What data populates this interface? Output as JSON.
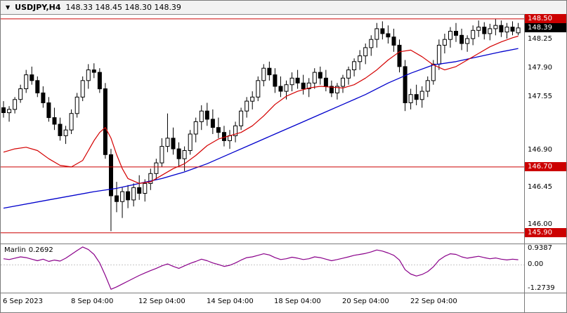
{
  "header": {
    "dropdown_icon": "▼",
    "symbol": "USDJPY,H4",
    "quote": "148.33 148.45 148.30 148.39"
  },
  "chart_data": {
    "type": "candlestick",
    "title": "USDJPY H4 chart with Marlin oscillator",
    "symbol": "USDJPY",
    "timeframe": "H4",
    "last_quote": {
      "open": "148.33",
      "high": "148.45",
      "low": "148.30",
      "close": "148.39"
    },
    "colors": {
      "hline": "#cc0000",
      "ma_fast": "#d40000",
      "ma_slow": "#0000cc",
      "indicator": "#8a008a",
      "current_bg": "#000000",
      "bull": "#ffffff",
      "bear": "#000000",
      "wick": "#000000",
      "zero_line": "#c8c8c8"
    },
    "price_axis": {
      "range": [
        145.77,
        148.55
      ],
      "ticks": [
        {
          "value": 148.25,
          "label": "148.25"
        },
        {
          "value": 147.9,
          "label": "147.90"
        },
        {
          "value": 147.55,
          "label": "147.55"
        },
        {
          "value": 146.9,
          "label": "146.90"
        },
        {
          "value": 146.45,
          "label": "146.45"
        },
        {
          "value": 146.0,
          "label": "146.00"
        }
      ]
    },
    "hlines": [
      {
        "price": 148.5,
        "label": "148.50"
      },
      {
        "price": 146.7,
        "label": "146.70"
      },
      {
        "price": 145.9,
        "label": "145.90"
      }
    ],
    "current_price": {
      "value": 148.39,
      "label": "148.39"
    },
    "candles": [
      [
        147.42,
        147.5,
        147.3,
        147.36
      ],
      [
        147.36,
        147.44,
        147.25,
        147.4
      ],
      [
        147.4,
        147.55,
        147.35,
        147.52
      ],
      [
        147.52,
        147.7,
        147.48,
        147.65
      ],
      [
        147.65,
        147.88,
        147.6,
        147.82
      ],
      [
        147.82,
        147.92,
        147.7,
        147.75
      ],
      [
        147.75,
        147.8,
        147.55,
        147.6
      ],
      [
        147.6,
        147.68,
        147.42,
        147.48
      ],
      [
        147.48,
        147.55,
        147.25,
        147.3
      ],
      [
        147.3,
        147.42,
        147.15,
        147.22
      ],
      [
        147.22,
        147.3,
        147.02,
        147.08
      ],
      [
        147.08,
        147.2,
        146.98,
        147.15
      ],
      [
        147.15,
        147.4,
        147.1,
        147.35
      ],
      [
        147.35,
        147.6,
        147.3,
        147.55
      ],
      [
        147.55,
        147.8,
        147.5,
        147.75
      ],
      [
        147.75,
        147.95,
        147.65,
        147.88
      ],
      [
        147.88,
        147.96,
        147.78,
        147.85
      ],
      [
        147.85,
        147.9,
        147.6,
        147.65
      ],
      [
        147.65,
        147.72,
        146.8,
        146.85
      ],
      [
        146.85,
        146.92,
        145.92,
        146.35
      ],
      [
        146.35,
        146.52,
        146.15,
        146.28
      ],
      [
        146.28,
        146.45,
        146.08,
        146.4
      ],
      [
        146.4,
        146.48,
        146.2,
        146.3
      ],
      [
        146.3,
        146.5,
        146.22,
        146.45
      ],
      [
        146.45,
        146.6,
        146.3,
        146.38
      ],
      [
        146.38,
        146.55,
        146.28,
        146.5
      ],
      [
        146.5,
        146.68,
        146.42,
        146.62
      ],
      [
        146.62,
        146.8,
        146.55,
        146.75
      ],
      [
        146.75,
        147.05,
        146.7,
        146.95
      ],
      [
        146.95,
        147.35,
        146.88,
        147.05
      ],
      [
        147.05,
        147.18,
        146.85,
        146.92
      ],
      [
        146.92,
        147.0,
        146.7,
        146.8
      ],
      [
        146.8,
        146.95,
        146.65,
        146.9
      ],
      [
        146.9,
        147.15,
        146.85,
        147.1
      ],
      [
        147.1,
        147.3,
        147.0,
        147.25
      ],
      [
        147.25,
        147.45,
        147.15,
        147.38
      ],
      [
        147.38,
        147.48,
        147.2,
        147.28
      ],
      [
        147.28,
        147.4,
        147.1,
        147.18
      ],
      [
        147.18,
        147.3,
        147.05,
        147.12
      ],
      [
        147.12,
        147.2,
        146.95,
        147.02
      ],
      [
        147.02,
        147.15,
        146.92,
        147.08
      ],
      [
        147.08,
        147.25,
        147.0,
        147.2
      ],
      [
        147.2,
        147.42,
        147.15,
        147.38
      ],
      [
        147.38,
        147.55,
        147.3,
        147.5
      ],
      [
        147.5,
        147.62,
        147.4,
        147.55
      ],
      [
        147.55,
        147.8,
        147.5,
        147.75
      ],
      [
        147.75,
        147.95,
        147.68,
        147.9
      ],
      [
        147.9,
        147.98,
        147.75,
        147.82
      ],
      [
        147.82,
        147.9,
        147.6,
        147.68
      ],
      [
        147.68,
        147.8,
        147.55,
        147.62
      ],
      [
        147.62,
        147.75,
        147.52,
        147.7
      ],
      [
        147.7,
        147.85,
        147.62,
        147.78
      ],
      [
        147.78,
        147.88,
        147.65,
        147.72
      ],
      [
        147.72,
        147.82,
        147.58,
        147.65
      ],
      [
        147.65,
        147.78,
        147.55,
        147.72
      ],
      [
        147.72,
        147.9,
        147.65,
        147.85
      ],
      [
        147.85,
        147.92,
        147.7,
        147.78
      ],
      [
        147.78,
        147.88,
        147.62,
        147.68
      ],
      [
        147.68,
        147.75,
        147.55,
        147.6
      ],
      [
        147.6,
        147.72,
        147.52,
        147.68
      ],
      [
        147.68,
        147.82,
        147.6,
        147.78
      ],
      [
        147.78,
        147.92,
        147.7,
        147.88
      ],
      [
        147.88,
        148.02,
        147.8,
        147.98
      ],
      [
        147.98,
        148.12,
        147.88,
        148.05
      ],
      [
        148.05,
        148.2,
        147.95,
        148.15
      ],
      [
        148.15,
        148.3,
        148.05,
        148.25
      ],
      [
        148.25,
        148.45,
        148.15,
        148.38
      ],
      [
        148.38,
        148.47,
        148.25,
        148.32
      ],
      [
        148.32,
        148.42,
        148.2,
        148.28
      ],
      [
        148.28,
        148.38,
        148.1,
        148.18
      ],
      [
        148.18,
        148.25,
        147.85,
        147.92
      ],
      [
        147.92,
        148.0,
        147.38,
        147.48
      ],
      [
        147.48,
        147.65,
        147.4,
        147.58
      ],
      [
        147.58,
        147.7,
        147.45,
        147.52
      ],
      [
        147.52,
        147.68,
        147.42,
        147.62
      ],
      [
        147.62,
        147.8,
        147.55,
        147.75
      ],
      [
        147.75,
        148.0,
        147.7,
        147.95
      ],
      [
        147.95,
        148.25,
        147.88,
        148.18
      ],
      [
        148.18,
        148.32,
        148.08,
        148.25
      ],
      [
        148.25,
        148.4,
        148.15,
        148.35
      ],
      [
        148.35,
        148.45,
        148.22,
        148.3
      ],
      [
        148.3,
        148.38,
        148.12,
        148.2
      ],
      [
        148.2,
        148.3,
        148.1,
        148.26
      ],
      [
        148.26,
        148.42,
        148.18,
        148.36
      ],
      [
        148.36,
        148.48,
        148.28,
        148.4
      ],
      [
        148.4,
        148.46,
        148.25,
        148.32
      ],
      [
        148.32,
        148.44,
        148.24,
        148.38
      ],
      [
        148.38,
        148.5,
        148.3,
        148.42
      ],
      [
        148.42,
        148.48,
        148.28,
        148.34
      ],
      [
        148.34,
        148.45,
        148.26,
        148.4
      ],
      [
        148.4,
        148.47,
        148.3,
        148.35
      ],
      [
        148.33,
        148.45,
        148.3,
        148.39
      ]
    ],
    "ma_slow_blue": [
      [
        0,
        146.2
      ],
      [
        8,
        146.3
      ],
      [
        16,
        146.4
      ],
      [
        20,
        146.44
      ],
      [
        24,
        146.5
      ],
      [
        28,
        146.56
      ],
      [
        32,
        146.64
      ],
      [
        36,
        146.74
      ],
      [
        40,
        146.86
      ],
      [
        44,
        146.98
      ],
      [
        48,
        147.1
      ],
      [
        52,
        147.22
      ],
      [
        56,
        147.34
      ],
      [
        60,
        147.46
      ],
      [
        64,
        147.58
      ],
      [
        68,
        147.72
      ],
      [
        72,
        147.84
      ],
      [
        76,
        147.94
      ],
      [
        80,
        147.98
      ],
      [
        84,
        148.04
      ],
      [
        88,
        148.1
      ],
      [
        91,
        148.14
      ]
    ],
    "ma_fast_red": [
      [
        0,
        146.88
      ],
      [
        2,
        146.92
      ],
      [
        4,
        146.94
      ],
      [
        6,
        146.9
      ],
      [
        8,
        146.8
      ],
      [
        10,
        146.72
      ],
      [
        12,
        146.7
      ],
      [
        14,
        146.78
      ],
      [
        15,
        146.9
      ],
      [
        16,
        147.02
      ],
      [
        17,
        147.12
      ],
      [
        18,
        147.18
      ],
      [
        19,
        147.05
      ],
      [
        20,
        146.85
      ],
      [
        21,
        146.68
      ],
      [
        22,
        146.56
      ],
      [
        24,
        146.5
      ],
      [
        26,
        146.52
      ],
      [
        28,
        146.6
      ],
      [
        30,
        146.68
      ],
      [
        32,
        146.74
      ],
      [
        34,
        146.84
      ],
      [
        36,
        146.96
      ],
      [
        38,
        147.04
      ],
      [
        40,
        147.08
      ],
      [
        42,
        147.12
      ],
      [
        44,
        147.2
      ],
      [
        46,
        147.32
      ],
      [
        48,
        147.46
      ],
      [
        50,
        147.56
      ],
      [
        52,
        147.62
      ],
      [
        54,
        147.66
      ],
      [
        56,
        147.68
      ],
      [
        58,
        147.67
      ],
      [
        60,
        147.66
      ],
      [
        62,
        147.7
      ],
      [
        64,
        147.78
      ],
      [
        66,
        147.88
      ],
      [
        68,
        148.0
      ],
      [
        70,
        148.1
      ],
      [
        72,
        148.12
      ],
      [
        74,
        148.04
      ],
      [
        76,
        147.94
      ],
      [
        78,
        147.88
      ],
      [
        80,
        147.92
      ],
      [
        82,
        148.0
      ],
      [
        84,
        148.08
      ],
      [
        86,
        148.16
      ],
      [
        88,
        148.22
      ],
      [
        90,
        148.27
      ],
      [
        91,
        148.29
      ]
    ],
    "indicator": {
      "name": "Marlin",
      "value_label": "0.2692",
      "range": [
        -1.45,
        1.08
      ],
      "axis_ticks": [
        {
          "value": 0.9387,
          "label": "0.9387"
        },
        {
          "value": 0.0,
          "label": "0.00"
        },
        {
          "value": -1.2739,
          "label": "-1.2739"
        }
      ],
      "values": [
        0.32,
        0.28,
        0.35,
        0.42,
        0.38,
        0.3,
        0.22,
        0.3,
        0.18,
        0.25,
        0.2,
        0.35,
        0.55,
        0.75,
        0.9387,
        0.8,
        0.55,
        0.1,
        -0.55,
        -1.2739,
        -1.15,
        -1.0,
        -0.85,
        -0.7,
        -0.55,
        -0.42,
        -0.3,
        -0.18,
        -0.05,
        0.05,
        -0.08,
        -0.18,
        -0.05,
        0.08,
        0.18,
        0.3,
        0.22,
        0.1,
        0.02,
        -0.08,
        -0.02,
        0.1,
        0.25,
        0.38,
        0.42,
        0.5,
        0.58,
        0.52,
        0.38,
        0.28,
        0.32,
        0.4,
        0.35,
        0.28,
        0.32,
        0.42,
        0.38,
        0.3,
        0.22,
        0.28,
        0.35,
        0.42,
        0.5,
        0.55,
        0.6,
        0.68,
        0.78,
        0.72,
        0.62,
        0.5,
        0.25,
        -0.25,
        -0.48,
        -0.58,
        -0.5,
        -0.35,
        -0.1,
        0.25,
        0.45,
        0.58,
        0.55,
        0.42,
        0.35,
        0.4,
        0.45,
        0.38,
        0.32,
        0.36,
        0.3,
        0.26,
        0.3,
        0.2692
      ]
    },
    "time_axis": {
      "labels": [
        {
          "text": "6 Sep 2023",
          "i": 0
        },
        {
          "text": "8 Sep 04:00",
          "i": 12
        },
        {
          "text": "12 Sep 04:00",
          "i": 24
        },
        {
          "text": "14 Sep 04:00",
          "i": 36
        },
        {
          "text": "18 Sep 04:00",
          "i": 48
        },
        {
          "text": "20 Sep 04:00",
          "i": 60
        },
        {
          "text": "22 Sep 04:00",
          "i": 72
        }
      ]
    }
  }
}
